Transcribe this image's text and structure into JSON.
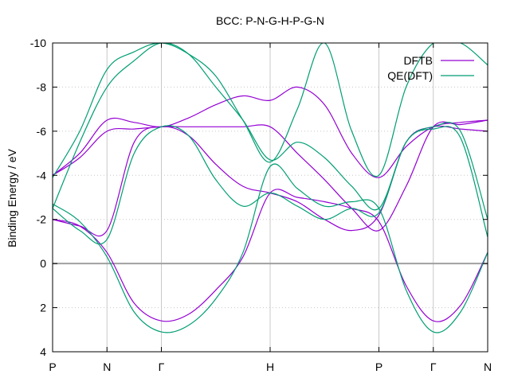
{
  "chart_data": {
    "type": "line",
    "title": "BCC: P-N-G-H-P-G-N",
    "xlabel": "",
    "ylabel": "Binding Energy / eV",
    "xlim": [
      0,
      4
    ],
    "ylim": [
      4,
      -10
    ],
    "y_ticks": [
      -10,
      -8,
      -6,
      -4,
      -2,
      0,
      2,
      4
    ],
    "y_tick_labels": [
      "-10",
      "-8",
      "-6",
      "-4",
      "-2",
      "0",
      "2",
      "4"
    ],
    "x_ticks": [
      {
        "label": "P",
        "x": 0
      },
      {
        "label": "N",
        "x": 0.5
      },
      {
        "label": "Γ",
        "x": 1
      },
      {
        "label": "H",
        "x": 2
      },
      {
        "label": "P",
        "x": 3
      },
      {
        "label": "Γ",
        "x": 3.5
      },
      {
        "label": "N",
        "x": 4
      }
    ],
    "zero_line": 0,
    "grid": "dotted horizontal, solid vertical at high-symmetry points",
    "legend_position": "top-right",
    "series": [
      {
        "name": "DFTB",
        "color": "#9400d3",
        "bands": [
          {
            "x": [
              0,
              0.25,
              0.5,
              0.75,
              1,
              1.25,
              1.5,
              1.75,
              2,
              2.25,
              2.5,
              2.75,
              3,
              3.25,
              3.5,
              3.75,
              4
            ],
            "y": [
              -2,
              -1.7,
              -0.5,
              1.8,
              2.6,
              2.3,
              1.2,
              -0.3,
              -3.2,
              -3,
              -2.8,
              -2.5,
              -1.9,
              1,
              2.6,
              1.9,
              -0.5
            ]
          },
          {
            "x": [
              0,
              0.25,
              0.5,
              0.75,
              1,
              1.25,
              1.5,
              1.75,
              2,
              2.25,
              2.5,
              2.75,
              3,
              3.25,
              3.5,
              3.75,
              4
            ],
            "y": [
              -2,
              -1.7,
              -1.5,
              -5.5,
              -6.2,
              -5.8,
              -4.5,
              -3.5,
              -3.2,
              -2.8,
              -2,
              -1.5,
              -2.2,
              -5.5,
              -6.2,
              -6.1,
              -6
            ]
          },
          {
            "x": [
              0,
              0.25,
              0.5,
              0.75,
              1,
              1.25,
              1.5,
              1.75,
              2,
              2.25,
              2.5,
              2.75,
              3,
              3.25,
              3.5,
              3.75,
              4
            ],
            "y": [
              -4,
              -4.8,
              -6,
              -6.1,
              -6.2,
              -6.2,
              -6.2,
              -6.2,
              -6.2,
              -5,
              -3.8,
              -2.5,
              -1.5,
              -3.5,
              -6.2,
              -6.3,
              -6.5
            ]
          },
          {
            "x": [
              0,
              0.25,
              0.5,
              0.75,
              1,
              1.25,
              1.5,
              1.75,
              2,
              2.25,
              2.5,
              2.75,
              3,
              3.25,
              3.5,
              3.75,
              4
            ],
            "y": [
              -4,
              -5,
              -6.5,
              -6.4,
              -6.2,
              -6.6,
              -7.2,
              -7.6,
              -7.4,
              -8,
              -7.2,
              -5,
              -3.9,
              -5.3,
              -6.2,
              -6.4,
              -6.5
            ]
          }
        ]
      },
      {
        "name": "QE(DFT)",
        "color": "#009e73",
        "bands": [
          {
            "x": [
              0,
              0.25,
              0.5,
              0.75,
              1,
              1.25,
              1.5,
              1.75,
              2,
              2.25,
              2.5,
              2.75,
              3,
              3.25,
              3.5,
              3.75,
              4
            ],
            "y": [
              -2.7,
              -1.9,
              -0.3,
              2.2,
              3.1,
              2.8,
              1.6,
              -0.5,
              -4.4,
              -3.4,
              -2.6,
              -2.8,
              -2.5,
              1.2,
              3.1,
              2.2,
              -0.5
            ]
          },
          {
            "x": [
              0,
              0.25,
              0.5,
              0.75,
              1,
              1.25,
              1.5,
              1.75,
              2,
              2.25,
              2.5,
              2.75,
              3,
              3.25,
              3.5,
              3.75,
              4
            ],
            "y": [
              -2.5,
              -1.5,
              -1.1,
              -5,
              -6.2,
              -5.8,
              -3.8,
              -2.6,
              -3.2,
              -2.6,
              -2,
              -2.5,
              -2.3,
              -5.5,
              -6.1,
              -5.7,
              -1.2
            ]
          },
          {
            "x": [
              0,
              0.25,
              0.5,
              0.75,
              1,
              1.25,
              1.5,
              1.75,
              2,
              2.25,
              2.5,
              2.75,
              3,
              3.25,
              3.5,
              3.75,
              4
            ],
            "y": [
              -2.5,
              -5.5,
              -8,
              -9.2,
              -10,
              -9.5,
              -8,
              -6.5,
              -4.7,
              -5.5,
              -4.8,
              -3.5,
              -2.5,
              -5.5,
              -6.2,
              -6,
              -2
            ]
          },
          {
            "x": [
              0,
              0.25,
              0.5,
              0.75,
              1,
              1.25,
              1.5,
              1.75,
              2,
              2.25,
              2.5,
              2.75,
              3,
              3.25,
              3.5,
              3.75,
              4
            ],
            "y": [
              -3.9,
              -6,
              -8.8,
              -9.6,
              -10,
              -9.5,
              -8.5,
              -6.5,
              -4.6,
              -7,
              -10,
              -6,
              -4,
              -8,
              -10,
              -10,
              -9
            ]
          }
        ]
      }
    ]
  }
}
